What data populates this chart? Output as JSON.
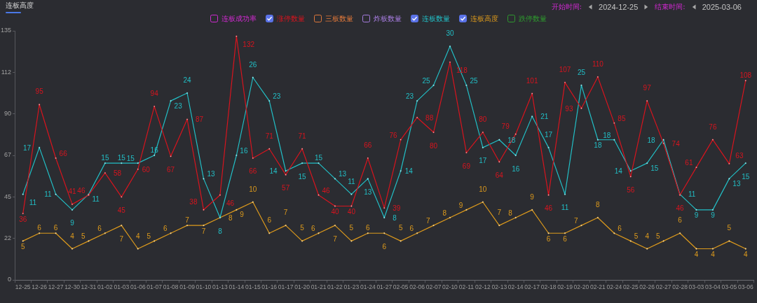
{
  "chart_data": {
    "type": "line",
    "title": "连板高度",
    "annotations": [
      "开始时间:",
      "2024-12-25",
      "结束时间:",
      "2025-03-06"
    ],
    "categories": [
      "12-25",
      "12-26",
      "12-27",
      "12-30",
      "12-31",
      "01-02",
      "01-03",
      "01-06",
      "01-07",
      "01-08",
      "01-09",
      "01-10",
      "01-13",
      "01-14",
      "01-15",
      "01-16",
      "01-17",
      "01-20",
      "01-21",
      "01-22",
      "01-23",
      "01-24",
      "01-27",
      "02-05",
      "02-06",
      "02-07",
      "02-10",
      "02-11",
      "02-12",
      "02-13",
      "02-14",
      "02-17",
      "02-18",
      "02-19",
      "02-20",
      "02-21",
      "02-24",
      "02-25",
      "02-26",
      "02-27",
      "02-28",
      "03-03",
      "03-04",
      "03-05",
      "03-06"
    ],
    "series": [
      {
        "name": "连板成功率",
        "color": "#d22ad2",
        "values": [
          null,
          null,
          null,
          null,
          null,
          null,
          null,
          null,
          null,
          null,
          null,
          null,
          null,
          null,
          null,
          null,
          null,
          null,
          null,
          null,
          null,
          null,
          null,
          null,
          null,
          null,
          null,
          null,
          null,
          null,
          null,
          null,
          null,
          null,
          null,
          null,
          null,
          null,
          null,
          null,
          null,
          null,
          null,
          null,
          null
        ]
      },
      {
        "name": "涨停数量",
        "color": "#d8141e",
        "values": [
          36,
          95,
          66,
          41,
          46,
          58,
          45,
          60,
          94,
          67,
          87,
          38,
          46,
          132,
          66,
          71,
          57,
          71,
          46,
          40,
          40,
          66,
          39,
          76,
          88,
          80,
          118,
          69,
          80,
          64,
          79,
          101,
          46,
          107,
          93,
          110,
          85,
          56,
          97,
          74,
          46,
          61,
          76,
          63,
          108
        ]
      },
      {
        "name": "三板数量",
        "color": "#e0783a",
        "values": [
          null,
          null,
          null,
          null,
          null,
          null,
          null,
          null,
          null,
          null,
          null,
          null,
          null,
          null,
          null,
          null,
          null,
          null,
          null,
          null,
          null,
          null,
          null,
          null,
          null,
          null,
          null,
          null,
          null,
          null,
          null,
          null,
          null,
          null,
          null,
          null,
          null,
          null,
          null,
          null,
          null,
          null,
          null,
          null,
          null
        ]
      },
      {
        "name": "炸板数量",
        "color": "#a77de0",
        "values": [
          null,
          null,
          null,
          null,
          null,
          null,
          null,
          null,
          null,
          null,
          null,
          null,
          null,
          null,
          null,
          null,
          null,
          null,
          null,
          null,
          null,
          null,
          null,
          null,
          null,
          null,
          null,
          null,
          null,
          null,
          null,
          null,
          null,
          null,
          null,
          null,
          null,
          null,
          null,
          null,
          null,
          null,
          null,
          null,
          null
        ]
      },
      {
        "name": "连板数量",
        "color": "#22bfc6",
        "axis": "y2",
        "values": [
          11,
          17,
          11,
          9,
          11,
          15,
          15,
          15,
          16,
          23,
          24,
          13,
          8,
          16,
          26,
          23,
          14,
          15,
          15,
          13,
          11,
          13,
          8,
          14,
          23,
          25,
          30,
          25,
          17,
          18,
          16,
          21,
          17,
          11,
          25,
          18,
          18,
          14,
          15,
          18,
          11,
          9,
          9,
          13,
          15
        ]
      },
      {
        "name": "连板高度",
        "color": "#dd9a1c",
        "axis": "y2",
        "values": [
          5,
          6,
          6,
          4,
          5,
          6,
          7,
          4,
          5,
          6,
          7,
          7,
          8,
          9,
          10,
          6,
          7,
          5,
          6,
          7,
          5,
          6,
          6,
          5,
          6,
          7,
          8,
          9,
          10,
          7,
          8,
          9,
          6,
          6,
          7,
          8,
          6,
          5,
          4,
          5,
          6,
          4,
          4,
          5,
          4
        ]
      },
      {
        "name": "跌停数量",
        "color": "#2e9a2e",
        "values": [
          null,
          null,
          null,
          null,
          null,
          null,
          null,
          null,
          null,
          null,
          null,
          null,
          null,
          null,
          null,
          null,
          null,
          null,
          null,
          null,
          null,
          null,
          null,
          null,
          null,
          null,
          null,
          null,
          null,
          null,
          null,
          null,
          null,
          null,
          null,
          null,
          null,
          null,
          null,
          null,
          null,
          null,
          null,
          null,
          null
        ]
      }
    ],
    "ylim": [
      0,
      135
    ],
    "yticks": [
      0,
      {
        "value": 22.5,
        "label": "22"
      },
      45,
      {
        "value": 67.5,
        "label": "67"
      },
      90,
      {
        "value": 112.5,
        "label": "112"
      },
      135
    ],
    "y2lim": [
      0,
      32
    ],
    "legend": "top",
    "marker": "circle",
    "data_labels": true
  }
}
